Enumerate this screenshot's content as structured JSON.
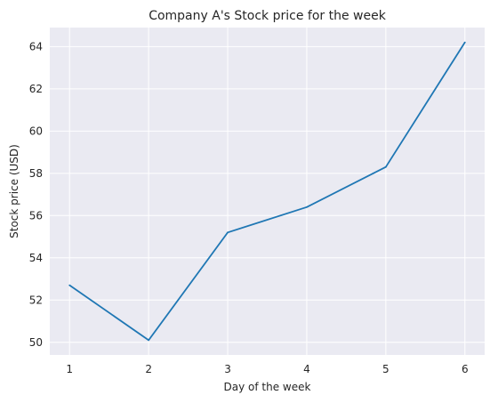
{
  "chart_data": {
    "type": "line",
    "title": "Company A's Stock price for the week",
    "xlabel": "Day of the week",
    "ylabel": "Stock price (USD)",
    "x": [
      1,
      2,
      3,
      4,
      5,
      6
    ],
    "xticks": [
      "1",
      "2",
      "3",
      "4",
      "5",
      "6"
    ],
    "yticks": [
      "50",
      "52",
      "54",
      "56",
      "58",
      "60",
      "62",
      "64"
    ],
    "series": [
      {
        "values": [
          52.7,
          50.1,
          55.2,
          56.4,
          58.3,
          64.2
        ]
      }
    ],
    "xlim": [
      0.75,
      6.25
    ],
    "ylim": [
      49.4,
      64.9
    ],
    "grid": true,
    "colors": {
      "plot_background": "#eaeaf2",
      "grid": "#ffffff",
      "line": "#1f77b4"
    }
  }
}
